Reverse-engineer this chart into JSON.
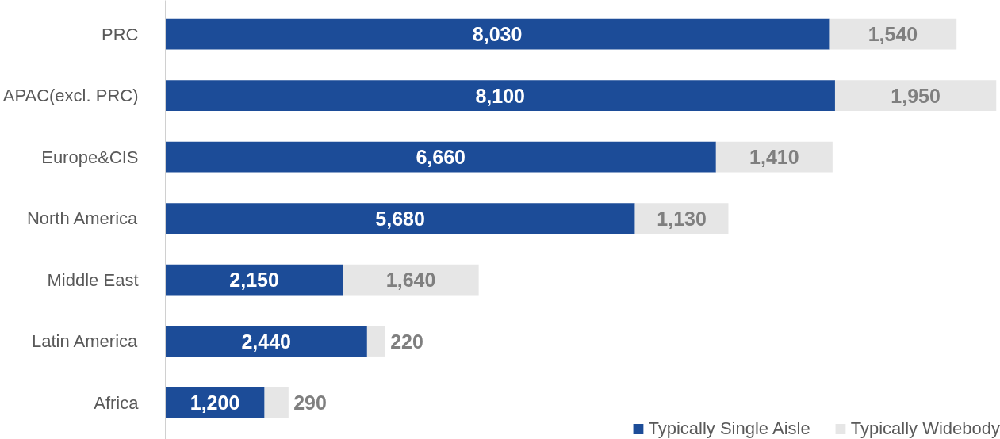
{
  "chart_data": {
    "type": "bar",
    "orientation": "horizontal",
    "stacked": true,
    "legend": "bottom right",
    "grid": false,
    "categories": [
      "PRC",
      "APAC(excl. PRC)",
      "Europe&CIS",
      "North America",
      "Middle East",
      "Latin America",
      "Africa"
    ],
    "series": [
      {
        "name": "Typically Single Aisle",
        "color": "#1c4c98",
        "values": [
          8030,
          8100,
          6660,
          5680,
          2150,
          2440,
          1200
        ],
        "value_labels": [
          "8,030",
          "8,100",
          "6,660",
          "5,680",
          "2,150",
          "2,440",
          "1,200"
        ]
      },
      {
        "name": "Typically Widebody",
        "color": "#e6e6e6",
        "values": [
          1540,
          1950,
          1410,
          1130,
          1640,
          220,
          290
        ],
        "value_labels": [
          "1,540",
          "1,950",
          "1,410",
          "1,130",
          "1,640",
          "220",
          "290"
        ]
      }
    ]
  }
}
